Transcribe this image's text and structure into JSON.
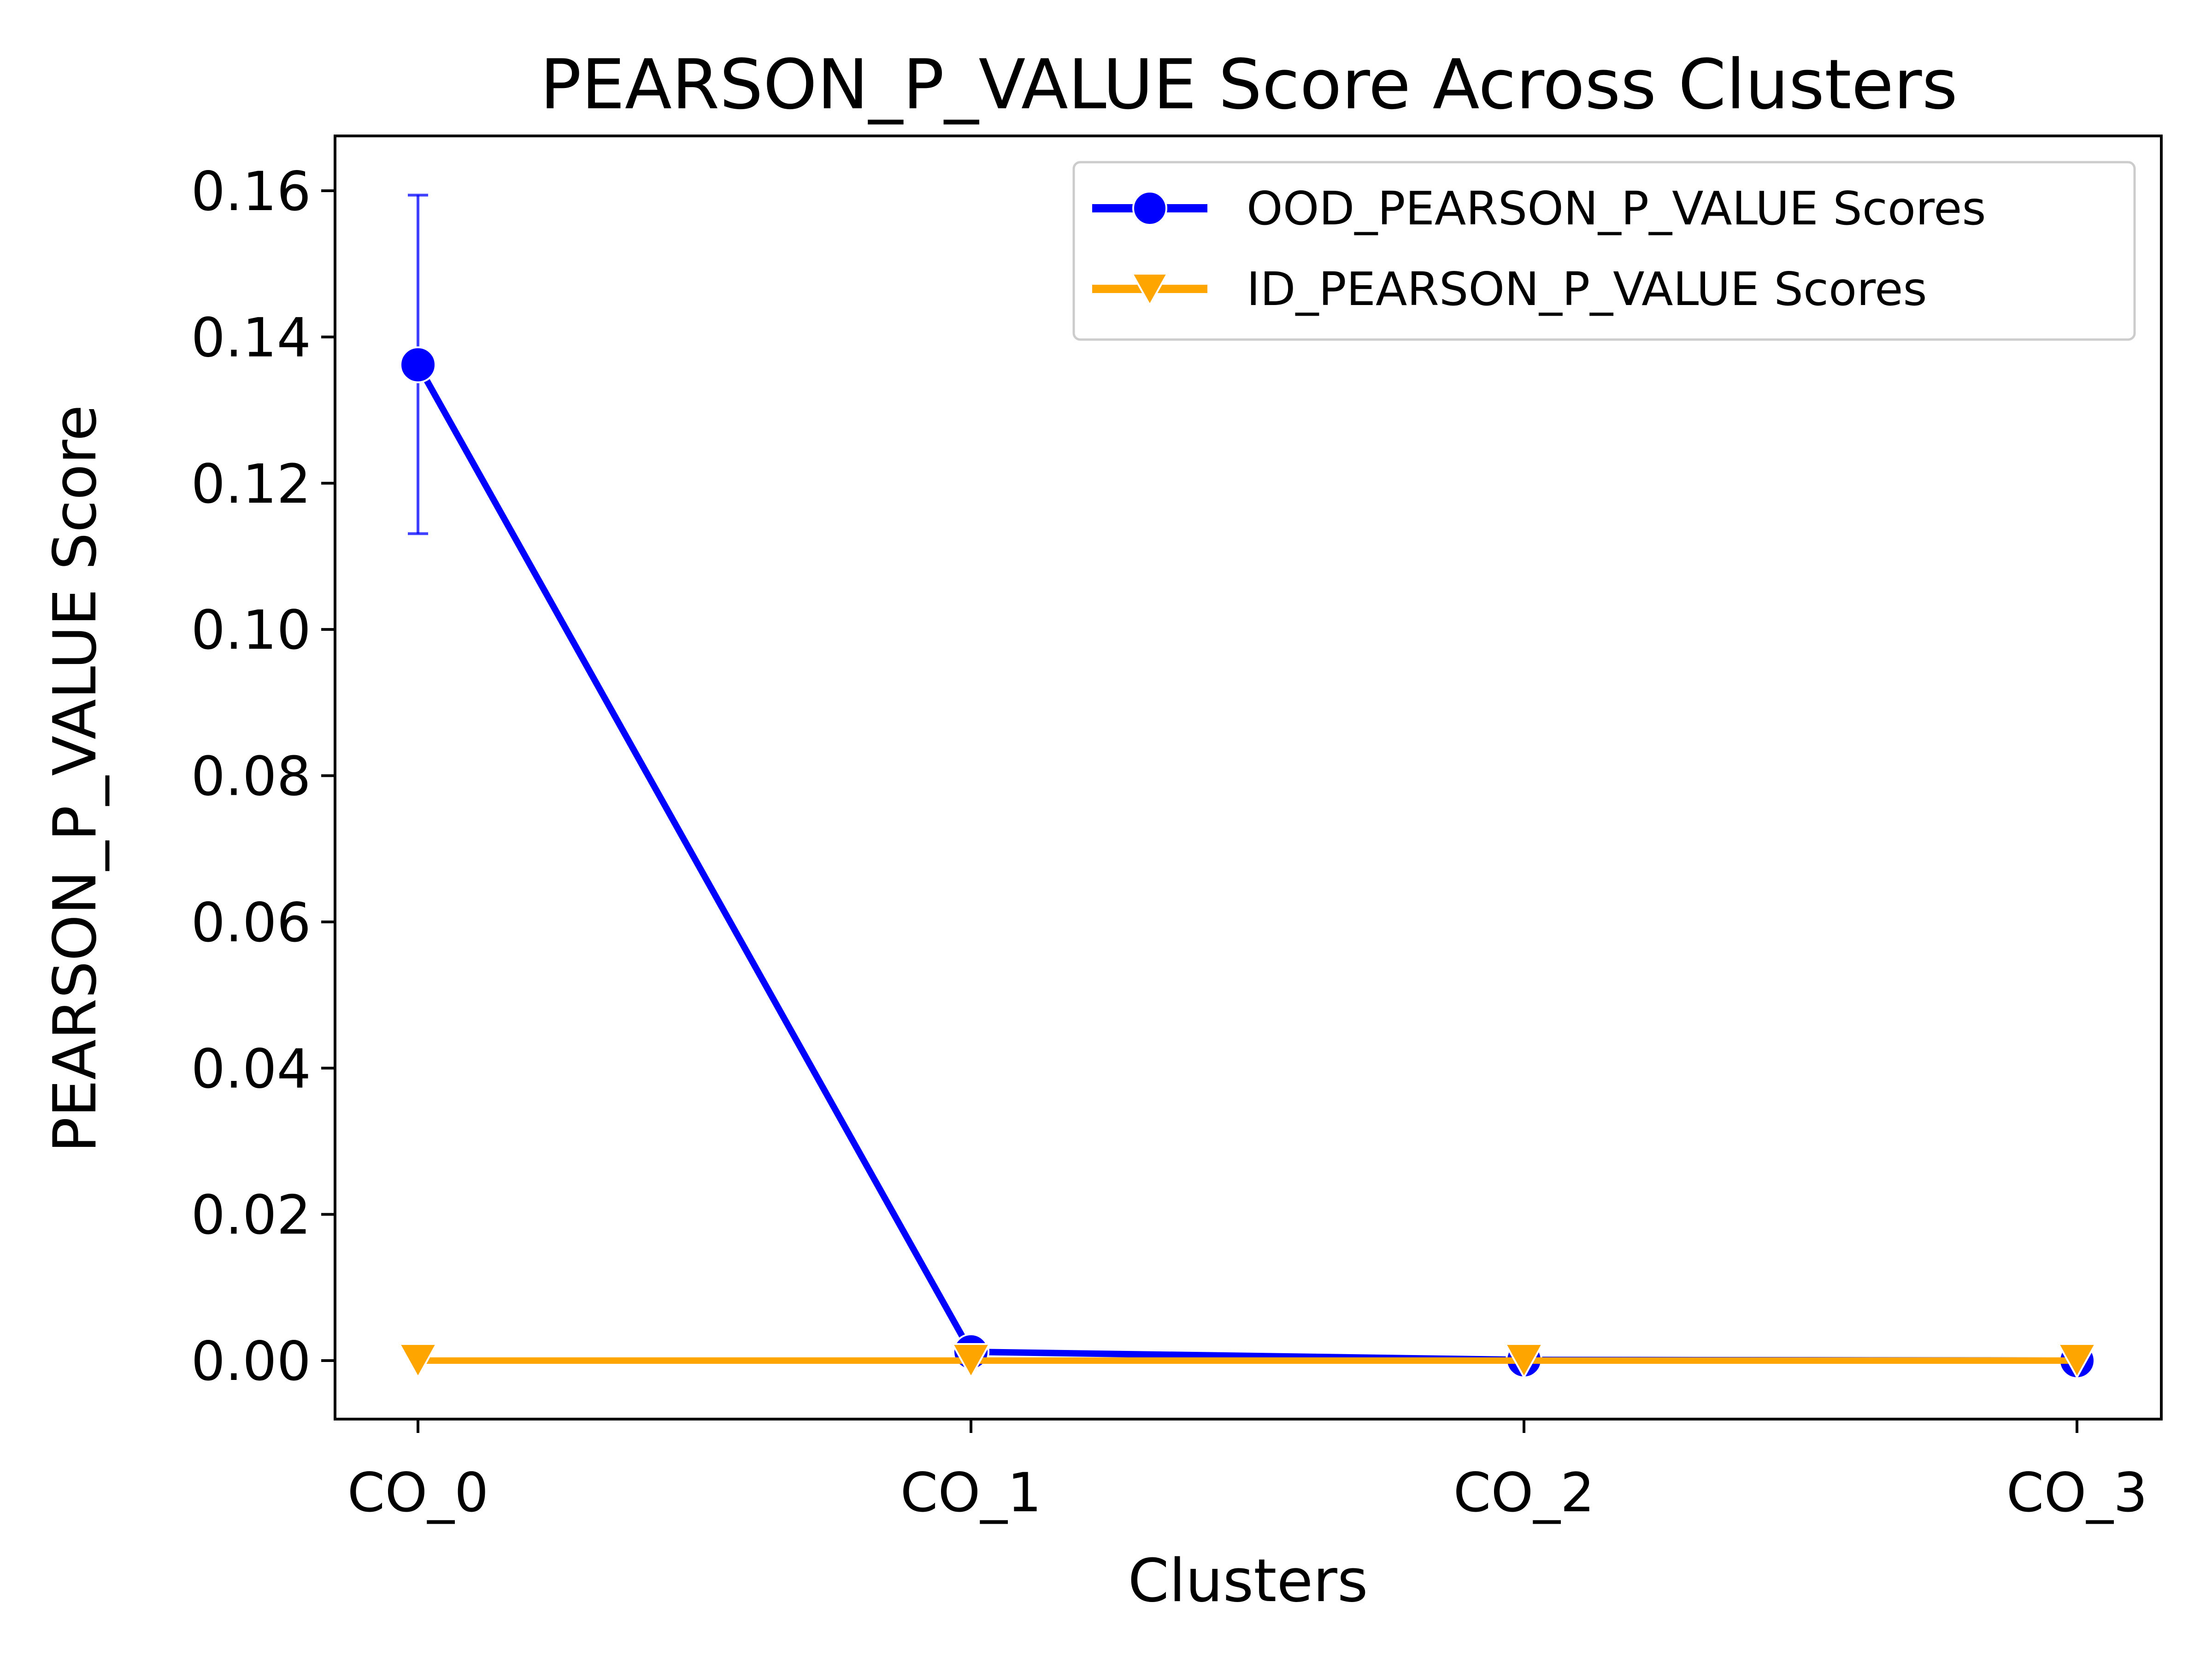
{
  "chart_data": {
    "type": "line",
    "title": "PEARSON_P_VALUE Score Across Clusters",
    "xlabel": "Clusters",
    "ylabel": "PEARSON_P_VALUE Score",
    "categories": [
      "CO_0",
      "CO_1",
      "CO_2",
      "CO_3"
    ],
    "ylim": [
      -0.008,
      0.1675
    ],
    "yticks": [
      0.0,
      0.02,
      0.04,
      0.06,
      0.08,
      0.1,
      0.12,
      0.14,
      0.16
    ],
    "ytick_labels": [
      "0.00",
      "0.02",
      "0.04",
      "0.06",
      "0.08",
      "0.10",
      "0.12",
      "0.14",
      "0.16"
    ],
    "grid": false,
    "legend_position": "top-right",
    "series": [
      {
        "name": "OOD_PEARSON_P_VALUE Scores",
        "color": "#0000ff",
        "marker": "circle",
        "values": [
          0.1362,
          0.0012,
          0.0001,
          0.0
        ],
        "error_bars": [
          {
            "index": 0,
            "low": 0.1131,
            "high": 0.1594
          }
        ]
      },
      {
        "name": "ID_PEARSON_P_VALUE Scores",
        "color": "#ffa500",
        "marker": "triangle-down",
        "values": [
          0.0,
          0.0,
          0.0,
          0.0
        ]
      }
    ]
  }
}
